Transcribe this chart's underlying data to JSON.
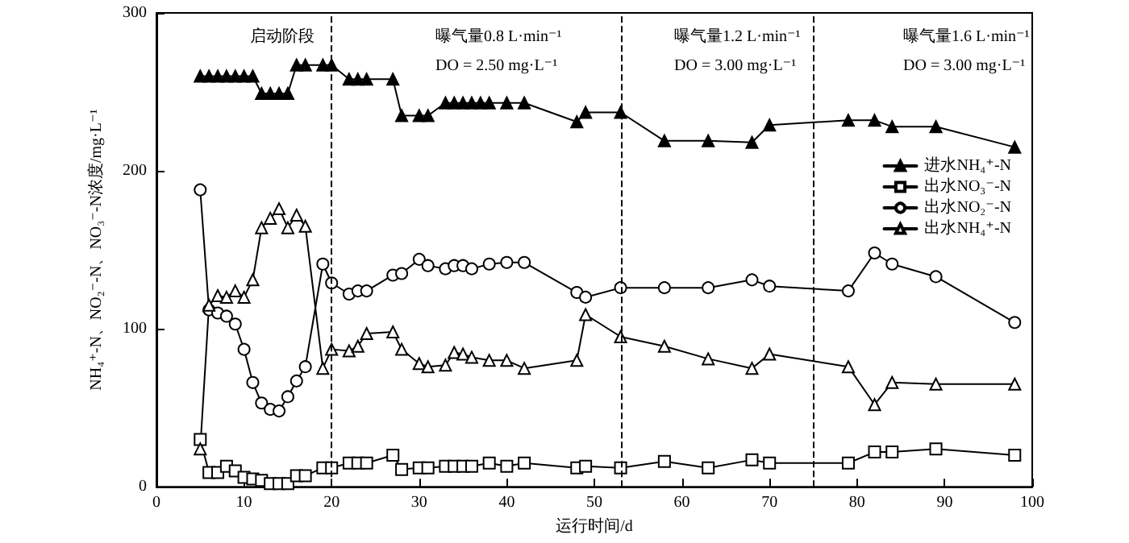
{
  "chart_data": {
    "type": "line",
    "xlabel": "运行时间/d",
    "ylabel": "NH₄⁺-N、NO₂⁻-N、NO₃⁻-N浓度/mg·L⁻¹",
    "xlim": [
      0,
      100
    ],
    "xticks": [
      0,
      10,
      20,
      30,
      40,
      50,
      60,
      70,
      80,
      90,
      100
    ],
    "ylim": [
      0,
      300
    ],
    "yticks": [
      0,
      100,
      200,
      300
    ],
    "grid": false,
    "legend": "right",
    "line_style": "solid",
    "ref_lines": [
      {
        "axis": "x",
        "value": 20,
        "line_style": "dashed",
        "color": "#000000"
      },
      {
        "axis": "x",
        "value": 53,
        "line_style": "dashed",
        "color": "#000000"
      },
      {
        "axis": "x",
        "value": 75,
        "line_style": "dashed",
        "color": "#000000"
      }
    ],
    "annotations": [
      "启动阶段",
      "曝气量0.8 L·min⁻¹",
      "DO = 2.50 mg·L⁻¹",
      "曝气量1.2 L·min⁻¹",
      "DO = 3.00 mg·L⁻¹",
      "曝气量1.6 L·min⁻¹",
      "DO = 3.00 mg·L⁻¹"
    ],
    "series": [
      {
        "name": "进水NH₄⁺-N",
        "color": "#000000",
        "marker": "triangle",
        "x": [
          5,
          6,
          7,
          8,
          9,
          10,
          11,
          12,
          13,
          14,
          15,
          16,
          17,
          19,
          20,
          22,
          23,
          24,
          27,
          28,
          30,
          31,
          33,
          34,
          35,
          36,
          37,
          38,
          40,
          42,
          48,
          49,
          53,
          58,
          63,
          68,
          70,
          79,
          82,
          84,
          89,
          98
        ],
        "values": [
          260,
          260,
          260,
          260,
          260,
          260,
          260,
          249,
          249,
          249,
          249,
          267,
          267,
          267,
          267,
          258,
          258,
          258,
          258,
          235,
          235,
          235,
          243,
          243,
          243,
          243,
          243,
          243,
          243,
          243,
          231,
          237,
          237,
          219,
          219,
          218,
          229,
          232,
          232,
          228,
          228,
          215
        ]
      },
      {
        "name": "出水NO₃⁻-N",
        "color": "#000000",
        "marker": "square",
        "x": [
          5,
          6,
          7,
          8,
          9,
          10,
          11,
          12,
          13,
          14,
          15,
          16,
          17,
          19,
          20,
          22,
          23,
          24,
          27,
          28,
          30,
          31,
          33,
          34,
          35,
          36,
          38,
          40,
          42,
          48,
          49,
          53,
          58,
          63,
          68,
          70,
          79,
          82,
          84,
          89,
          98
        ],
        "values": [
          30,
          9,
          9,
          13,
          10,
          6,
          5,
          4,
          2,
          2,
          2,
          7,
          7,
          12,
          12,
          15,
          15,
          15,
          20,
          11,
          12,
          12,
          13,
          13,
          13,
          13,
          15,
          13,
          15,
          12,
          13,
          12,
          16,
          12,
          17,
          15,
          15,
          22,
          22,
          24,
          20
        ]
      },
      {
        "name": "出水NO₂⁻-N",
        "color": "#000000",
        "marker": "circle",
        "x": [
          5,
          6,
          7,
          8,
          9,
          10,
          11,
          12,
          13,
          14,
          15,
          16,
          17,
          19,
          20,
          22,
          23,
          24,
          27,
          28,
          30,
          31,
          33,
          34,
          35,
          36,
          38,
          40,
          42,
          48,
          49,
          53,
          58,
          63,
          68,
          70,
          79,
          82,
          84,
          89,
          98
        ],
        "values": [
          188,
          112,
          110,
          108,
          103,
          87,
          66,
          53,
          49,
          48,
          57,
          67,
          76,
          141,
          129,
          122,
          124,
          124,
          134,
          135,
          144,
          140,
          138,
          140,
          140,
          138,
          141,
          142,
          142,
          123,
          120,
          126,
          126,
          126,
          131,
          127,
          124,
          148,
          141,
          133,
          104
        ]
      },
      {
        "name": "出水NH₄⁺-N",
        "color": "#000000",
        "marker": "triangle",
        "x": [
          5,
          6,
          7,
          8,
          9,
          10,
          11,
          12,
          13,
          14,
          15,
          16,
          17,
          19,
          20,
          22,
          23,
          24,
          27,
          28,
          30,
          31,
          33,
          34,
          35,
          36,
          38,
          40,
          42,
          48,
          49,
          53,
          58,
          63,
          68,
          70,
          79,
          82,
          84,
          89,
          98
        ],
        "values": [
          24,
          115,
          121,
          120,
          124,
          120,
          131,
          164,
          170,
          176,
          164,
          172,
          165,
          75,
          87,
          86,
          89,
          97,
          98,
          87,
          78,
          76,
          77,
          85,
          84,
          82,
          80,
          80,
          75,
          80,
          109,
          95,
          89,
          81,
          75,
          84,
          76,
          52,
          66,
          65,
          65
        ]
      }
    ]
  }
}
